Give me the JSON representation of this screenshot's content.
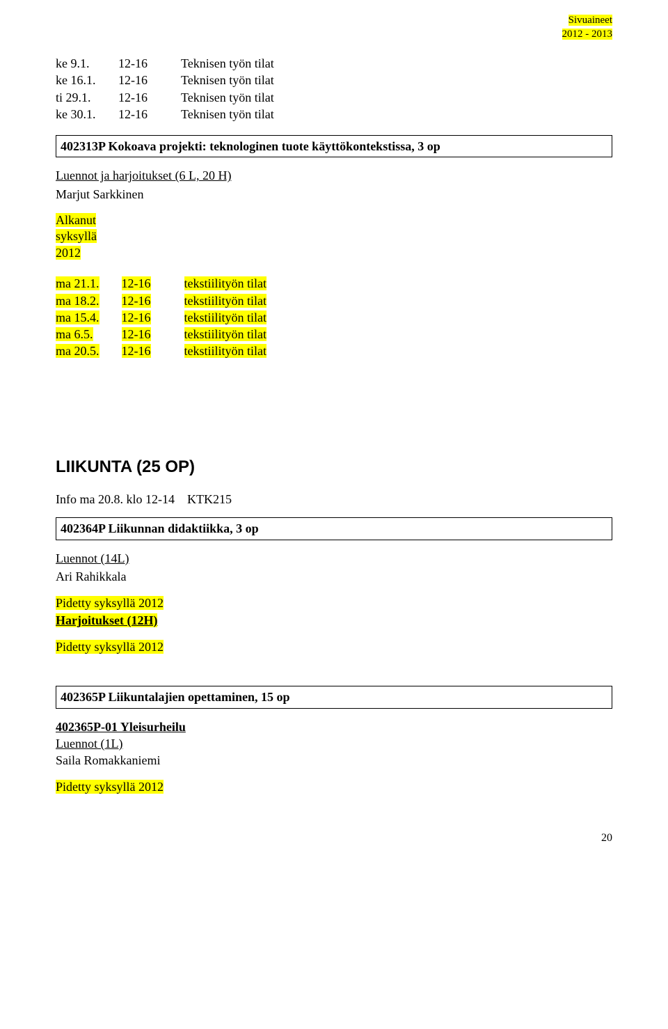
{
  "header": {
    "line1": "Sivuaineet",
    "line2": "2012 - 2013"
  },
  "schedule1": [
    {
      "day": "ke 9.1.",
      "time": "12-16",
      "room": "Teknisen työn tilat"
    },
    {
      "day": "ke 16.1.",
      "time": "12-16",
      "room": "Teknisen työn tilat"
    },
    {
      "day": "ti 29.1.",
      "time": "12-16",
      "room": "Teknisen työn tilat"
    },
    {
      "day": "ke 30.1.",
      "time": "12-16",
      "room": "Teknisen työn tilat"
    }
  ],
  "course1": {
    "title": "402313P Kokoava projekti: teknologinen tuote käyttökontekstissa, 3 op",
    "sub": "Luennot ja harjoitukset (6 L, 20 H)",
    "teacher": "Marjut Sarkkinen"
  },
  "alkanut": {
    "line1": "Alkanut",
    "line2": "syksyllä",
    "line3": "2012"
  },
  "schedule2": [
    {
      "day": "ma 21.1.",
      "time": "12-16",
      "room": "tekstiilityön tilat"
    },
    {
      "day": "ma 18.2.",
      "time": "12-16",
      "room": "tekstiilityön tilat"
    },
    {
      "day": "ma 15.4.",
      "time": "12-16",
      "room": "tekstiilityön tilat"
    },
    {
      "day": "ma 6.5.",
      "time": "12-16",
      "room": "tekstiilityön tilat"
    },
    {
      "day": "ma 20.5.",
      "time": "12-16",
      "room": "tekstiilityön tilat"
    }
  ],
  "liikunta": {
    "heading": "LIIKUNTA (25 OP)",
    "info_prefix": "Info ma 20.8. klo 12-14",
    "info_room": "KTK215"
  },
  "course2": {
    "title": "402364P Liikunnan didaktiikka, 3 op",
    "sub": "Luennot (14L)",
    "teacher": "Ari Rahikkala"
  },
  "pidetty1": "Pidetty syksyllä 2012",
  "harjoitukset": "Harjoitukset (12H)",
  "pidetty2": "Pidetty syksyllä 2012",
  "course3": {
    "title": "402365P Liikuntalajien opettaminen, 15 op",
    "sub1": "402365P-01 Yleisurheilu",
    "sub2": "Luennot (1L)",
    "teacher": "Saila Romakkaniemi"
  },
  "pidetty3": "Pidetty syksyllä 2012",
  "page_number": "20"
}
